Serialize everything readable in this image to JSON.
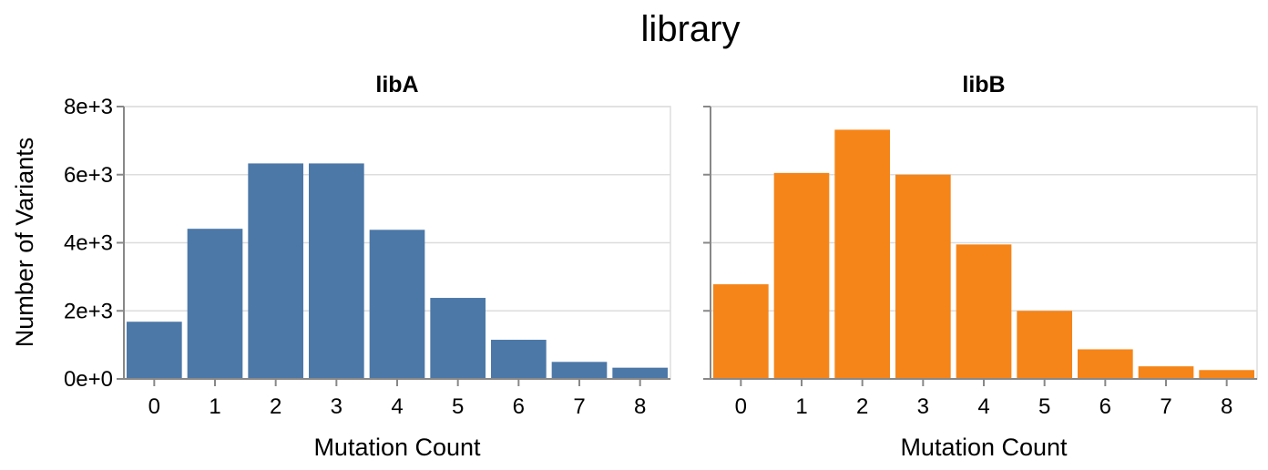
{
  "chart_data": {
    "type": "bar",
    "title": "library",
    "xlabel": "Mutation Count",
    "ylabel": "Number of Variants",
    "ylim": [
      0,
      8000
    ],
    "yticks": [
      0,
      2000,
      4000,
      6000,
      8000
    ],
    "ytick_labels": [
      "0e+0",
      "2e+3",
      "4e+3",
      "6e+3",
      "8e+3"
    ],
    "categories": [
      "0",
      "1",
      "2",
      "3",
      "4",
      "5",
      "6",
      "7",
      "8"
    ],
    "grid": true,
    "series": [
      {
        "name": "libA",
        "color": "#4c78a8",
        "values": [
          1680,
          4410,
          6330,
          6330,
          4380,
          2380,
          1150,
          500,
          330
        ]
      },
      {
        "name": "libB",
        "color": "#f58518",
        "values": [
          2780,
          6050,
          7320,
          6000,
          3950,
          2000,
          870,
          370,
          260
        ]
      }
    ]
  }
}
